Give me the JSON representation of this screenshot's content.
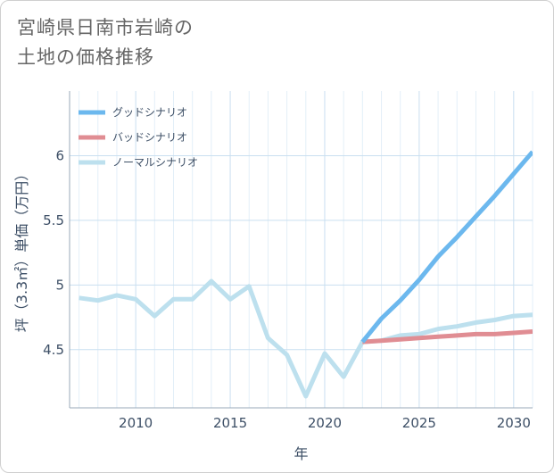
{
  "title_lines": [
    "宮崎県日南市岩崎の",
    "土地の価格推移"
  ],
  "chart_data": {
    "type": "line",
    "title": "宮崎県日南市岩崎の土地の価格推移",
    "xlabel": "年",
    "ylabel": "坪（3.3㎡）単価（万円）",
    "xlim": [
      2006.5,
      2031
    ],
    "ylim": [
      4.05,
      6.5
    ],
    "xticks": [
      2010,
      2015,
      2020,
      2025,
      2030
    ],
    "yticks": [
      4.5,
      5,
      5.5,
      6
    ],
    "ytick_labels": [
      "4.5",
      "5",
      "5.5",
      "6"
    ],
    "legend_position": "top-left",
    "series": [
      {
        "name": "グッドシナリオ",
        "color": "#6cb8ee",
        "x": [
          2022,
          2023,
          2024,
          2025,
          2026,
          2027,
          2028,
          2029,
          2030,
          2031
        ],
        "y": [
          4.56,
          4.74,
          4.88,
          5.04,
          5.22,
          5.37,
          5.53,
          5.69,
          5.86,
          6.03
        ]
      },
      {
        "name": "バッドシナリオ",
        "color": "#e08d93",
        "x": [
          2022,
          2023,
          2024,
          2025,
          2026,
          2027,
          2028,
          2029,
          2030,
          2031
        ],
        "y": [
          4.56,
          4.57,
          4.58,
          4.59,
          4.6,
          4.61,
          4.62,
          4.62,
          4.63,
          4.64
        ]
      },
      {
        "name": "ノーマルシナリオ",
        "color": "#bde0ee",
        "x": [
          2007,
          2008,
          2009,
          2010,
          2011,
          2012,
          2013,
          2014,
          2015,
          2016,
          2017,
          2018,
          2019,
          2020,
          2021,
          2022,
          2023,
          2024,
          2025,
          2026,
          2027,
          2028,
          2029,
          2030,
          2031
        ],
        "y": [
          4.9,
          4.88,
          4.92,
          4.89,
          4.76,
          4.89,
          4.89,
          5.03,
          4.89,
          4.99,
          4.59,
          4.46,
          4.14,
          4.47,
          4.29,
          4.56,
          4.57,
          4.61,
          4.62,
          4.66,
          4.68,
          4.71,
          4.73,
          4.76,
          4.77
        ]
      }
    ]
  }
}
